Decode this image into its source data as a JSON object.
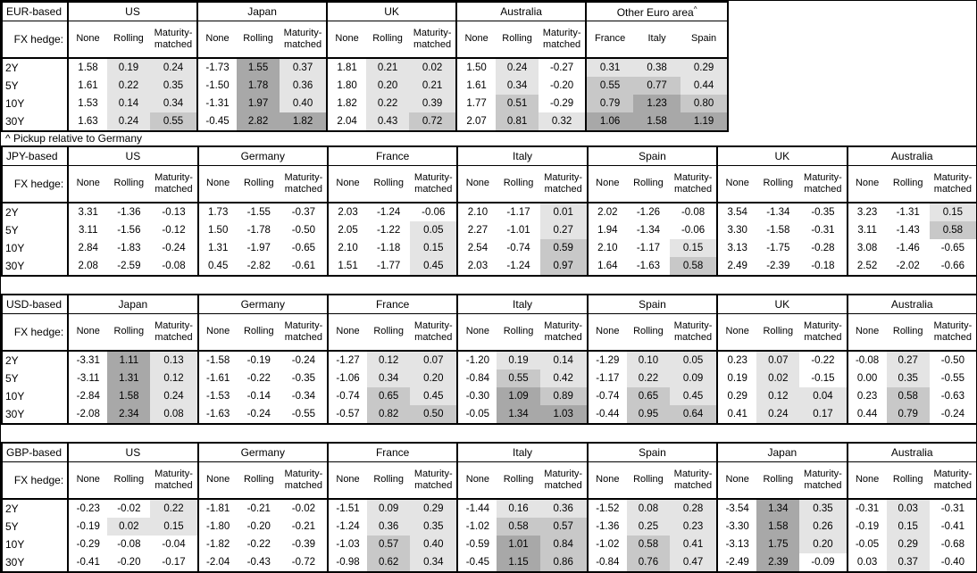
{
  "footnote": "^ Pickup relative to Germany",
  "fx_hedge_label": "FX hedge:",
  "tenors": [
    "2Y",
    "5Y",
    "10Y",
    "30Y"
  ],
  "hedge_columns": [
    "None",
    "Rolling",
    "Maturity-matched"
  ],
  "colors": {
    "shade_light": "#e4e4e4",
    "shade_mid": "#c8c8c8",
    "shade_dark": "#a8a8a8",
    "border": "#000000",
    "text": "#000000",
    "background": "#ffffff"
  },
  "shading_rule": {
    "applies_to": "hedged and spread columns only",
    "buckets": [
      {
        "min": 0.0,
        "max": 0.5,
        "shade": "light"
      },
      {
        "min": 0.5,
        "max": 1.0,
        "shade": "mid"
      },
      {
        "min": 1.0,
        "max": 99,
        "shade": "dark"
      }
    ]
  },
  "chart_data": [
    {
      "type": "table",
      "base": "EUR-based",
      "row_labels": [
        "2Y",
        "5Y",
        "10Y",
        "30Y"
      ],
      "groups": [
        {
          "name": "US",
          "columns": [
            "None",
            "Rolling",
            "Maturity-matched"
          ],
          "shaded": [
            false,
            true,
            true
          ],
          "values": [
            [
              "1.58",
              "0.19",
              "0.24"
            ],
            [
              "1.61",
              "0.22",
              "0.35"
            ],
            [
              "1.53",
              "0.14",
              "0.34"
            ],
            [
              "1.63",
              "0.24",
              "0.55"
            ]
          ]
        },
        {
          "name": "Japan",
          "columns": [
            "None",
            "Rolling",
            "Maturity-matched"
          ],
          "shaded": [
            false,
            true,
            true
          ],
          "values": [
            [
              "-1.73",
              "1.55",
              "0.37"
            ],
            [
              "-1.50",
              "1.78",
              "0.36"
            ],
            [
              "-1.31",
              "1.97",
              "0.40"
            ],
            [
              "-0.45",
              "2.82",
              "1.82"
            ]
          ]
        },
        {
          "name": "UK",
          "columns": [
            "None",
            "Rolling",
            "Maturity-matched"
          ],
          "shaded": [
            false,
            true,
            true
          ],
          "values": [
            [
              "1.81",
              "0.21",
              "0.02"
            ],
            [
              "1.80",
              "0.20",
              "0.21"
            ],
            [
              "1.82",
              "0.22",
              "0.39"
            ],
            [
              "2.04",
              "0.43",
              "0.72"
            ]
          ]
        },
        {
          "name": "Australia",
          "columns": [
            "None",
            "Rolling",
            "Maturity-matched"
          ],
          "shaded": [
            false,
            true,
            true
          ],
          "values": [
            [
              "1.50",
              "0.24",
              "-0.27"
            ],
            [
              "1.61",
              "0.34",
              "-0.20"
            ],
            [
              "1.77",
              "0.51",
              "-0.29"
            ],
            [
              "2.07",
              "0.81",
              "0.32"
            ]
          ]
        },
        {
          "name": "Other Euro area",
          "superscript": "^",
          "columns": [
            "France",
            "Italy",
            "Spain"
          ],
          "shaded": [
            true,
            true,
            true
          ],
          "values": [
            [
              "0.31",
              "0.38",
              "0.29"
            ],
            [
              "0.55",
              "0.77",
              "0.44"
            ],
            [
              "0.79",
              "1.23",
              "0.80"
            ],
            [
              "1.06",
              "1.58",
              "1.19"
            ]
          ]
        }
      ]
    },
    {
      "type": "table",
      "base": "JPY-based",
      "row_labels": [
        "2Y",
        "5Y",
        "10Y",
        "30Y"
      ],
      "groups": [
        {
          "name": "US",
          "columns": [
            "None",
            "Rolling",
            "Maturity-matched"
          ],
          "shaded": [
            false,
            true,
            true
          ],
          "values": [
            [
              "3.31",
              "-1.36",
              "-0.13"
            ],
            [
              "3.11",
              "-1.56",
              "-0.12"
            ],
            [
              "2.84",
              "-1.83",
              "-0.24"
            ],
            [
              "2.08",
              "-2.59",
              "-0.08"
            ]
          ]
        },
        {
          "name": "Germany",
          "columns": [
            "None",
            "Rolling",
            "Maturity-matched"
          ],
          "shaded": [
            false,
            true,
            true
          ],
          "values": [
            [
              "1.73",
              "-1.55",
              "-0.37"
            ],
            [
              "1.50",
              "-1.78",
              "-0.50"
            ],
            [
              "1.31",
              "-1.97",
              "-0.65"
            ],
            [
              "0.45",
              "-2.82",
              "-0.61"
            ]
          ]
        },
        {
          "name": "France",
          "columns": [
            "None",
            "Rolling",
            "Maturity-matched"
          ],
          "shaded": [
            false,
            true,
            true
          ],
          "values": [
            [
              "2.03",
              "-1.24",
              "-0.06"
            ],
            [
              "2.05",
              "-1.22",
              "0.05"
            ],
            [
              "2.10",
              "-1.18",
              "0.15"
            ],
            [
              "1.51",
              "-1.77",
              "0.45"
            ]
          ]
        },
        {
          "name": "Italy",
          "columns": [
            "None",
            "Rolling",
            "Maturity-matched"
          ],
          "shaded": [
            false,
            true,
            true
          ],
          "values": [
            [
              "2.10",
              "-1.17",
              "0.01"
            ],
            [
              "2.27",
              "-1.01",
              "0.27"
            ],
            [
              "2.54",
              "-0.74",
              "0.59"
            ],
            [
              "2.03",
              "-1.24",
              "0.97"
            ]
          ]
        },
        {
          "name": "Spain",
          "columns": [
            "None",
            "Rolling",
            "Maturity-matched"
          ],
          "shaded": [
            false,
            true,
            true
          ],
          "values": [
            [
              "2.02",
              "-1.26",
              "-0.08"
            ],
            [
              "1.94",
              "-1.34",
              "-0.06"
            ],
            [
              "2.10",
              "-1.17",
              "0.15"
            ],
            [
              "1.64",
              "-1.63",
              "0.58"
            ]
          ]
        },
        {
          "name": "UK",
          "columns": [
            "None",
            "Rolling",
            "Maturity-matched"
          ],
          "shaded": [
            false,
            true,
            true
          ],
          "values": [
            [
              "3.54",
              "-1.34",
              "-0.35"
            ],
            [
              "3.30",
              "-1.58",
              "-0.31"
            ],
            [
              "3.13",
              "-1.75",
              "-0.28"
            ],
            [
              "2.49",
              "-2.39",
              "-0.18"
            ]
          ]
        },
        {
          "name": "Australia",
          "columns": [
            "None",
            "Rolling",
            "Maturity-matched"
          ],
          "shaded": [
            false,
            true,
            true
          ],
          "values": [
            [
              "3.23",
              "-1.31",
              "0.15"
            ],
            [
              "3.11",
              "-1.43",
              "0.58"
            ],
            [
              "3.08",
              "-1.46",
              "-0.65"
            ],
            [
              "2.52",
              "-2.02",
              "-0.66"
            ]
          ]
        }
      ]
    },
    {
      "type": "table",
      "base": "USD-based",
      "row_labels": [
        "2Y",
        "5Y",
        "10Y",
        "30Y"
      ],
      "groups": [
        {
          "name": "Japan",
          "columns": [
            "None",
            "Rolling",
            "Maturity-matched"
          ],
          "shaded": [
            false,
            true,
            true
          ],
          "values": [
            [
              "-3.31",
              "1.11",
              "0.13"
            ],
            [
              "-3.11",
              "1.31",
              "0.12"
            ],
            [
              "-2.84",
              "1.58",
              "0.24"
            ],
            [
              "-2.08",
              "2.34",
              "0.08"
            ]
          ]
        },
        {
          "name": "Germany",
          "columns": [
            "None",
            "Rolling",
            "Maturity-matched"
          ],
          "shaded": [
            false,
            true,
            true
          ],
          "values": [
            [
              "-1.58",
              "-0.19",
              "-0.24"
            ],
            [
              "-1.61",
              "-0.22",
              "-0.35"
            ],
            [
              "-1.53",
              "-0.14",
              "-0.34"
            ],
            [
              "-1.63",
              "-0.24",
              "-0.55"
            ]
          ]
        },
        {
          "name": "France",
          "columns": [
            "None",
            "Rolling",
            "Maturity-matched"
          ],
          "shaded": [
            false,
            true,
            true
          ],
          "values": [
            [
              "-1.27",
              "0.12",
              "0.07"
            ],
            [
              "-1.06",
              "0.34",
              "0.20"
            ],
            [
              "-0.74",
              "0.65",
              "0.45"
            ],
            [
              "-0.57",
              "0.82",
              "0.50"
            ]
          ]
        },
        {
          "name": "Italy",
          "columns": [
            "None",
            "Rolling",
            "Maturity-matched"
          ],
          "shaded": [
            false,
            true,
            true
          ],
          "values": [
            [
              "-1.20",
              "0.19",
              "0.14"
            ],
            [
              "-0.84",
              "0.55",
              "0.42"
            ],
            [
              "-0.30",
              "1.09",
              "0.89"
            ],
            [
              "-0.05",
              "1.34",
              "1.03"
            ]
          ]
        },
        {
          "name": "Spain",
          "columns": [
            "None",
            "Rolling",
            "Maturity-matched"
          ],
          "shaded": [
            false,
            true,
            true
          ],
          "values": [
            [
              "-1.29",
              "0.10",
              "0.05"
            ],
            [
              "-1.17",
              "0.22",
              "0.09"
            ],
            [
              "-0.74",
              "0.65",
              "0.45"
            ],
            [
              "-0.44",
              "0.95",
              "0.64"
            ]
          ]
        },
        {
          "name": "UK",
          "columns": [
            "None",
            "Rolling",
            "Maturity-matched"
          ],
          "shaded": [
            false,
            true,
            true
          ],
          "values": [
            [
              "0.23",
              "0.07",
              "-0.22"
            ],
            [
              "0.19",
              "0.02",
              "-0.15"
            ],
            [
              "0.29",
              "0.12",
              "0.04"
            ],
            [
              "0.41",
              "0.24",
              "0.17"
            ]
          ]
        },
        {
          "name": "Australia",
          "columns": [
            "None",
            "Rolling",
            "Maturity-matched"
          ],
          "shaded": [
            false,
            true,
            true
          ],
          "values": [
            [
              "-0.08",
              "0.27",
              "-0.50"
            ],
            [
              "0.00",
              "0.35",
              "-0.55"
            ],
            [
              "0.23",
              "0.58",
              "-0.63"
            ],
            [
              "0.44",
              "0.79",
              "-0.24"
            ]
          ]
        }
      ]
    },
    {
      "type": "table",
      "base": "GBP-based",
      "row_labels": [
        "2Y",
        "5Y",
        "10Y",
        "30Y"
      ],
      "groups": [
        {
          "name": "US",
          "columns": [
            "None",
            "Rolling",
            "Maturity-matched"
          ],
          "shaded": [
            false,
            true,
            true
          ],
          "values": [
            [
              "-0.23",
              "-0.02",
              "0.22"
            ],
            [
              "-0.19",
              "0.02",
              "0.15"
            ],
            [
              "-0.29",
              "-0.08",
              "-0.04"
            ],
            [
              "-0.41",
              "-0.20",
              "-0.17"
            ]
          ]
        },
        {
          "name": "Germany",
          "columns": [
            "None",
            "Rolling",
            "Maturity-matched"
          ],
          "shaded": [
            false,
            true,
            true
          ],
          "values": [
            [
              "-1.81",
              "-0.21",
              "-0.02"
            ],
            [
              "-1.80",
              "-0.20",
              "-0.21"
            ],
            [
              "-1.82",
              "-0.22",
              "-0.39"
            ],
            [
              "-2.04",
              "-0.43",
              "-0.72"
            ]
          ]
        },
        {
          "name": "France",
          "columns": [
            "None",
            "Rolling",
            "Maturity-matched"
          ],
          "shaded": [
            false,
            true,
            true
          ],
          "values": [
            [
              "-1.51",
              "0.09",
              "0.29"
            ],
            [
              "-1.24",
              "0.36",
              "0.35"
            ],
            [
              "-1.03",
              "0.57",
              "0.40"
            ],
            [
              "-0.98",
              "0.62",
              "0.34"
            ]
          ]
        },
        {
          "name": "Italy",
          "columns": [
            "None",
            "Rolling",
            "Maturity-matched"
          ],
          "shaded": [
            false,
            true,
            true
          ],
          "values": [
            [
              "-1.44",
              "0.16",
              "0.36"
            ],
            [
              "-1.02",
              "0.58",
              "0.57"
            ],
            [
              "-0.59",
              "1.01",
              "0.84"
            ],
            [
              "-0.45",
              "1.15",
              "0.86"
            ]
          ]
        },
        {
          "name": "Spain",
          "columns": [
            "None",
            "Rolling",
            "Maturity-matched"
          ],
          "shaded": [
            false,
            true,
            true
          ],
          "values": [
            [
              "-1.52",
              "0.08",
              "0.28"
            ],
            [
              "-1.36",
              "0.25",
              "0.23"
            ],
            [
              "-1.02",
              "0.58",
              "0.41"
            ],
            [
              "-0.84",
              "0.76",
              "0.47"
            ]
          ]
        },
        {
          "name": "Japan",
          "columns": [
            "None",
            "Rolling",
            "Maturity-matched"
          ],
          "shaded": [
            false,
            true,
            true
          ],
          "values": [
            [
              "-3.54",
              "1.34",
              "0.35"
            ],
            [
              "-3.30",
              "1.58",
              "0.26"
            ],
            [
              "-3.13",
              "1.75",
              "0.20"
            ],
            [
              "-2.49",
              "2.39",
              "-0.09"
            ]
          ]
        },
        {
          "name": "Australia",
          "columns": [
            "None",
            "Rolling",
            "Maturity-matched"
          ],
          "shaded": [
            false,
            true,
            true
          ],
          "values": [
            [
              "-0.31",
              "0.03",
              "-0.31"
            ],
            [
              "-0.19",
              "0.15",
              "-0.41"
            ],
            [
              "-0.05",
              "0.29",
              "-0.68"
            ],
            [
              "0.03",
              "0.37",
              "-0.40"
            ]
          ]
        }
      ]
    }
  ]
}
